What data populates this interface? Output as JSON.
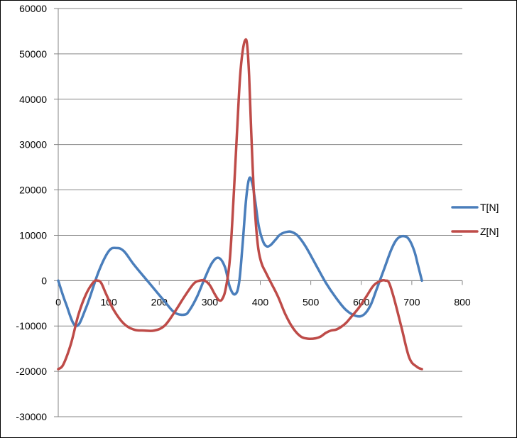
{
  "chart_data": {
    "type": "line",
    "title": "",
    "xlabel": "",
    "ylabel": "",
    "xlim": [
      0,
      800
    ],
    "ylim": [
      -30000,
      60000
    ],
    "x_ticks": [
      0,
      100,
      200,
      300,
      400,
      500,
      600,
      700,
      800
    ],
    "y_ticks": [
      -30000,
      -20000,
      -10000,
      0,
      10000,
      20000,
      30000,
      40000,
      50000,
      60000
    ],
    "x_tick_labels": [
      "0",
      "100",
      "200",
      "300",
      "400",
      "500",
      "600",
      "700",
      "800"
    ],
    "y_tick_labels": [
      "-30000",
      "-20000",
      "-10000",
      "0",
      "10000",
      "20000",
      "30000",
      "40000",
      "50000",
      "60000"
    ],
    "grid": "horizontal",
    "legend_position": "right",
    "series": [
      {
        "name": "T[N]",
        "color": "#4A7EBB",
        "x": [
          0,
          15,
          35,
          55,
          80,
          100,
          115,
          130,
          150,
          180,
          210,
          230,
          250,
          260,
          275,
          290,
          305,
          318,
          330,
          340,
          350,
          358,
          365,
          372,
          378,
          384,
          390,
          397,
          405,
          412,
          420,
          430,
          440,
          455,
          465,
          475,
          490,
          510,
          530,
          550,
          570,
          590,
          605,
          618,
          630,
          645,
          660,
          672,
          685,
          695,
          705,
          712,
          720
        ],
        "y": [
          0,
          -5000,
          -10000,
          -6000,
          2000,
          6500,
          7200,
          6500,
          3500,
          -500,
          -4500,
          -7000,
          -7500,
          -6500,
          -3500,
          500,
          4000,
          5000,
          3000,
          -1500,
          -3000,
          -500,
          8000,
          18000,
          22500,
          21500,
          17500,
          12000,
          8800,
          7600,
          7800,
          9000,
          10200,
          10800,
          10600,
          9800,
          7500,
          3500,
          -500,
          -3800,
          -6500,
          -7800,
          -7500,
          -5500,
          -2000,
          2500,
          7000,
          9300,
          9800,
          9000,
          6500,
          3500,
          0
        ]
      },
      {
        "name": "Z[N]",
        "color": "#BE4B48",
        "x": [
          0,
          10,
          25,
          40,
          55,
          70,
          78,
          85,
          95,
          110,
          130,
          150,
          170,
          190,
          210,
          230,
          250,
          268,
          280,
          290,
          300,
          310,
          318,
          325,
          332,
          340,
          348,
          355,
          360,
          365,
          370,
          374,
          378,
          382,
          388,
          395,
          402,
          410,
          420,
          435,
          450,
          465,
          480,
          495,
          510,
          520,
          530,
          540,
          550,
          560,
          570,
          580,
          595,
          610,
          625,
          640,
          648,
          655,
          665,
          680,
          695,
          710,
          720
        ],
        "y": [
          -19500,
          -18500,
          -14000,
          -7500,
          -3000,
          -300,
          0,
          -500,
          -3000,
          -6500,
          -9500,
          -10800,
          -11000,
          -11000,
          -10000,
          -7000,
          -3500,
          -700,
          0,
          0,
          -1000,
          -3000,
          -4300,
          -4000,
          -1500,
          5000,
          20000,
          35000,
          45000,
          50500,
          53000,
          52000,
          45000,
          33000,
          18000,
          8000,
          4000,
          2000,
          -200,
          -3500,
          -7500,
          -10500,
          -12300,
          -12800,
          -12700,
          -12300,
          -11500,
          -11000,
          -10800,
          -10200,
          -9300,
          -8000,
          -6000,
          -3500,
          -1000,
          0,
          0,
          -500,
          -4000,
          -10500,
          -17000,
          -19000,
          -19500
        ]
      }
    ]
  }
}
